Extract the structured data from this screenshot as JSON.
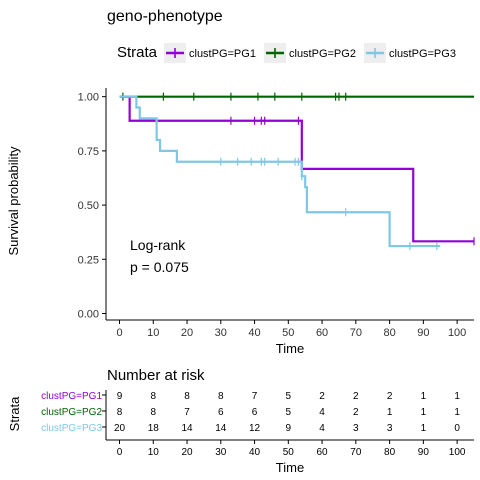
{
  "chart_data": [
    {
      "type": "line",
      "title": "geno-phenotype",
      "legend": {
        "title": "Strata",
        "placement": "top"
      },
      "xlabel": "Time",
      "ylabel": "Survival probability",
      "xlim": [
        -4,
        105
      ],
      "ylim": [
        -0.03,
        1.04
      ],
      "x_ticks": [
        0,
        10,
        20,
        30,
        40,
        50,
        60,
        70,
        80,
        90,
        100
      ],
      "y_ticks": [
        0.0,
        0.25,
        0.5,
        0.75,
        1.0
      ],
      "y_tick_labels": [
        "0.00",
        "0.25",
        "0.50",
        "0.75",
        "1.00"
      ],
      "grid": false,
      "series": [
        {
          "name": "clustPG=PG1",
          "color": "#9400D3",
          "steps": [
            [
              0,
              1.0
            ],
            [
              3,
              0.889
            ],
            [
              54,
              0.667
            ],
            [
              87,
              0.333
            ],
            [
              105,
              0.333
            ]
          ],
          "censor_x": [
            33,
            40,
            42,
            43,
            53,
            105
          ]
        },
        {
          "name": "clustPG=PG2",
          "color": "#006400",
          "steps": [
            [
              0,
              1.0
            ],
            [
              105,
              1.0
            ]
          ],
          "censor_x": [
            1,
            13,
            22,
            33,
            41,
            46,
            54,
            64,
            65,
            67
          ]
        },
        {
          "name": "clustPG=PG3",
          "color": "#7EC8E3",
          "steps": [
            [
              0,
              1.0
            ],
            [
              5,
              0.95
            ],
            [
              6,
              0.9
            ],
            [
              11,
              0.8
            ],
            [
              12,
              0.75
            ],
            [
              17,
              0.7
            ],
            [
              54,
              0.633
            ],
            [
              55,
              0.583
            ],
            [
              55.5,
              0.467
            ],
            [
              80,
              0.311
            ],
            [
              95,
              0.311
            ]
          ],
          "censor_x": [
            30,
            35,
            39,
            42,
            43,
            47,
            52,
            53,
            54,
            67,
            86,
            94
          ]
        }
      ],
      "annotations": [
        "Log-rank",
        "p = 0.075"
      ]
    },
    {
      "type": "table",
      "title": "Number at risk",
      "ylabel": "Strata",
      "xlabel": "Time",
      "x_ticks": [
        0,
        10,
        20,
        30,
        40,
        50,
        60,
        70,
        80,
        90,
        100
      ],
      "rows": [
        {
          "name": "clustPG=PG1",
          "color": "#9400D3",
          "values": [
            9,
            8,
            8,
            8,
            7,
            5,
            2,
            2,
            2,
            1,
            1
          ]
        },
        {
          "name": "clustPG=PG2",
          "color": "#006400",
          "values": [
            8,
            8,
            7,
            6,
            6,
            5,
            4,
            2,
            1,
            1,
            1
          ]
        },
        {
          "name": "clustPG=PG3",
          "color": "#7EC8E3",
          "values": [
            20,
            18,
            14,
            14,
            12,
            9,
            4,
            3,
            3,
            1,
            0
          ]
        }
      ]
    }
  ]
}
